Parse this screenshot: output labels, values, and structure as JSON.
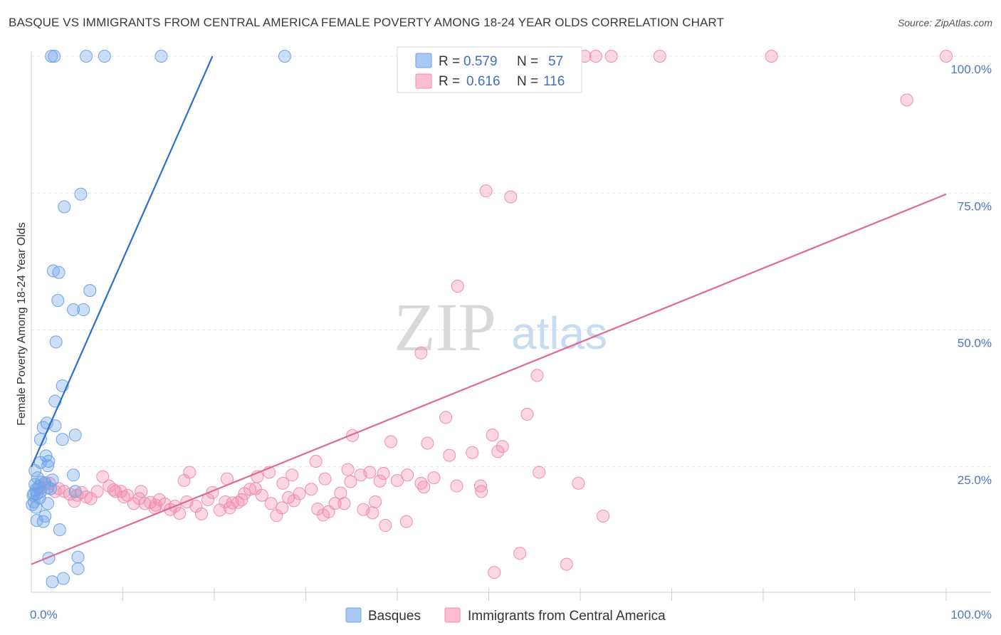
{
  "header": {
    "title": "BASQUE VS IMMIGRANTS FROM CENTRAL AMERICA FEMALE POVERTY AMONG 18-24 YEAR OLDS CORRELATION CHART",
    "source": "Source: ZipAtlas.com"
  },
  "watermark": {
    "zip": "ZIP",
    "atlas": "atlas"
  },
  "colors": {
    "basques": "#6fa3e8",
    "basques_line": "#2a6fd0",
    "immigrants": "#f08db0",
    "immigrants_line": "#e06898",
    "tick_label": "#4a78c8"
  },
  "chart_data": {
    "type": "scatter",
    "title": "BASQUE VS IMMIGRANTS FROM CENTRAL AMERICA FEMALE POVERTY AMONG 18-24 YEAR OLDS CORRELATION CHART",
    "xlabel": "",
    "ylabel": "Female Poverty Among 18-24 Year Olds",
    "xlim": [
      0,
      100
    ],
    "ylim": [
      0,
      100
    ],
    "x_tick_labels": [
      "0.0%",
      "100.0%"
    ],
    "y_tick_labels": [
      "25.0%",
      "50.0%",
      "75.0%",
      "100.0%"
    ],
    "y_ticks": [
      25,
      50,
      75,
      100
    ],
    "legend": {
      "entries": [
        {
          "name": "Basques",
          "r_label": "R =",
          "r": "0.579",
          "n_label": "N =",
          "n": "57"
        },
        {
          "name": "Immigrants from Central America",
          "r_label": "R =",
          "r": "0.616",
          "n_label": "N =",
          "n": "116"
        }
      ]
    },
    "series": [
      {
        "name": "Basques",
        "trend": {
          "x": [
            0,
            19.8
          ],
          "y": [
            25,
            100
          ]
        },
        "points": [
          [
            2.2,
            100
          ],
          [
            2.5,
            100
          ],
          [
            6.0,
            100
          ],
          [
            8.0,
            100
          ],
          [
            14.2,
            100
          ],
          [
            27.7,
            100
          ],
          [
            5.4,
            74.8
          ],
          [
            3.6,
            72.5
          ],
          [
            2.4,
            60.8
          ],
          [
            3.0,
            60.5
          ],
          [
            6.4,
            57.2
          ],
          [
            2.9,
            55.4
          ],
          [
            4.6,
            53.7
          ],
          [
            5.7,
            53.7
          ],
          [
            2.7,
            47.8
          ],
          [
            3.4,
            39.8
          ],
          [
            2.6,
            37.0
          ],
          [
            1.7,
            33.0
          ],
          [
            2.6,
            32.5
          ],
          [
            1.3,
            32.2
          ],
          [
            4.8,
            30.8
          ],
          [
            1.0,
            30.0
          ],
          [
            3.4,
            30.0
          ],
          [
            1.6,
            27.0
          ],
          [
            1.9,
            26.0
          ],
          [
            1.0,
            25.8
          ],
          [
            1.8,
            25.2
          ],
          [
            0.4,
            24.3
          ],
          [
            4.6,
            23.5
          ],
          [
            0.7,
            23.0
          ],
          [
            2.3,
            22.6
          ],
          [
            1.5,
            22.1
          ],
          [
            0.4,
            21.8
          ],
          [
            0.8,
            21.4
          ],
          [
            1.8,
            21.2
          ],
          [
            2.1,
            21.0
          ],
          [
            0.5,
            20.8
          ],
          [
            1.0,
            20.4
          ],
          [
            0.6,
            20.0
          ],
          [
            0.2,
            19.8
          ],
          [
            0.9,
            19.3
          ],
          [
            0.3,
            18.6
          ],
          [
            1.8,
            18.3
          ],
          [
            0.1,
            18.1
          ],
          [
            0.5,
            17.6
          ],
          [
            1.5,
            16.0
          ],
          [
            0.6,
            15.2
          ],
          [
            1.3,
            15.0
          ],
          [
            3.1,
            13.5
          ],
          [
            1.9,
            8.3
          ],
          [
            5.1,
            8.5
          ],
          [
            5.1,
            6.4
          ],
          [
            3.5,
            4.6
          ],
          [
            2.3,
            4.0
          ],
          [
            4.8,
            20.5
          ],
          [
            1.1,
            22.2
          ],
          [
            0.3,
            20.1
          ]
        ]
      },
      {
        "name": "Immigrants from Central America",
        "trend": {
          "x": [
            0,
            100
          ],
          "y": [
            7.2,
            74.8
          ]
        },
        "points": [
          [
            60.5,
            100
          ],
          [
            61.7,
            100
          ],
          [
            63.4,
            100
          ],
          [
            68.7,
            100
          ],
          [
            80.9,
            100
          ],
          [
            100,
            100
          ],
          [
            95.7,
            92.0
          ],
          [
            49.7,
            75.4
          ],
          [
            52.4,
            74.3
          ],
          [
            46.6,
            58.0
          ],
          [
            42.6,
            45.8
          ],
          [
            55.3,
            41.7
          ],
          [
            45.3,
            34.0
          ],
          [
            54.2,
            34.6
          ],
          [
            35.1,
            30.7
          ],
          [
            50.4,
            30.8
          ],
          [
            39.3,
            29.6
          ],
          [
            43.3,
            29.3
          ],
          [
            51.5,
            28.7
          ],
          [
            51.0,
            27.8
          ],
          [
            48.2,
            27.6
          ],
          [
            45.7,
            27.1
          ],
          [
            31.1,
            26.0
          ],
          [
            34.6,
            24.5
          ],
          [
            17.3,
            24.0
          ],
          [
            26.0,
            24.0
          ],
          [
            37.0,
            24.0
          ],
          [
            28.5,
            23.5
          ],
          [
            38.5,
            23.8
          ],
          [
            41.1,
            23.5
          ],
          [
            24.7,
            23.2
          ],
          [
            32.1,
            22.8
          ],
          [
            34.9,
            22.3
          ],
          [
            38.1,
            22.4
          ],
          [
            44.0,
            23.0
          ],
          [
            21.4,
            22.8
          ],
          [
            16.7,
            22.5
          ],
          [
            7.8,
            23.2
          ],
          [
            27.5,
            22.0
          ],
          [
            42.6,
            22.0
          ],
          [
            42.9,
            21.3
          ],
          [
            46.5,
            21.5
          ],
          [
            55.5,
            24.0
          ],
          [
            59.8,
            22.0
          ],
          [
            49.2,
            20.5
          ],
          [
            7.2,
            20.5
          ],
          [
            2.0,
            22.0
          ],
          [
            3.0,
            21.0
          ],
          [
            3.6,
            20.5
          ],
          [
            4.2,
            20.0
          ],
          [
            5.0,
            19.8
          ],
          [
            5.5,
            20.3
          ],
          [
            6.0,
            19.5
          ],
          [
            6.5,
            19.2
          ],
          [
            8.5,
            21.5
          ],
          [
            9.0,
            20.8
          ],
          [
            9.8,
            20.5
          ],
          [
            10.5,
            19.8
          ],
          [
            11.2,
            18.3
          ],
          [
            11.8,
            19.2
          ],
          [
            12.4,
            18.3
          ],
          [
            13.0,
            18.5
          ],
          [
            13.6,
            18.0
          ],
          [
            14.0,
            19.0
          ],
          [
            14.6,
            18.2
          ],
          [
            15.2,
            17.2
          ],
          [
            15.7,
            17.8
          ],
          [
            16.2,
            16.5
          ],
          [
            17.0,
            18.6
          ],
          [
            18.0,
            17.8
          ],
          [
            18.6,
            16.4
          ],
          [
            19.3,
            19.0
          ],
          [
            19.8,
            20.3
          ],
          [
            20.6,
            17.1
          ],
          [
            21.2,
            18.6
          ],
          [
            22.0,
            18.4
          ],
          [
            22.6,
            18.5
          ],
          [
            23.3,
            20.1
          ],
          [
            23.9,
            20.9
          ],
          [
            24.5,
            21.0
          ],
          [
            25.2,
            19.8
          ],
          [
            26.2,
            18.3
          ],
          [
            26.8,
            16.1
          ],
          [
            27.4,
            17.5
          ],
          [
            28.1,
            19.4
          ],
          [
            28.7,
            18.8
          ],
          [
            29.3,
            20.1
          ],
          [
            30.6,
            20.9
          ],
          [
            31.3,
            17.3
          ],
          [
            31.9,
            16.2
          ],
          [
            32.5,
            16.8
          ],
          [
            33.2,
            18.3
          ],
          [
            33.8,
            20.2
          ],
          [
            34.2,
            18.3
          ],
          [
            36.3,
            17.2
          ],
          [
            37.3,
            16.6
          ],
          [
            37.6,
            18.6
          ],
          [
            38.7,
            14.3
          ],
          [
            41.0,
            15.0
          ],
          [
            49.1,
            21.5
          ],
          [
            62.5,
            16.0
          ],
          [
            53.4,
            9.2
          ],
          [
            50.6,
            5.7
          ],
          [
            58.5,
            7.2
          ],
          [
            0.9,
            21.0
          ],
          [
            1.5,
            21.8
          ],
          [
            2.6,
            20.5
          ],
          [
            4.7,
            18.7
          ],
          [
            9.2,
            20.5
          ],
          [
            10.1,
            19.5
          ],
          [
            12.0,
            20.5
          ],
          [
            40.0,
            22.5
          ],
          [
            36.0,
            23.5
          ],
          [
            23.0,
            19.0
          ],
          [
            13.5,
            17.5
          ],
          [
            21.7,
            17.5
          ]
        ]
      }
    ]
  }
}
